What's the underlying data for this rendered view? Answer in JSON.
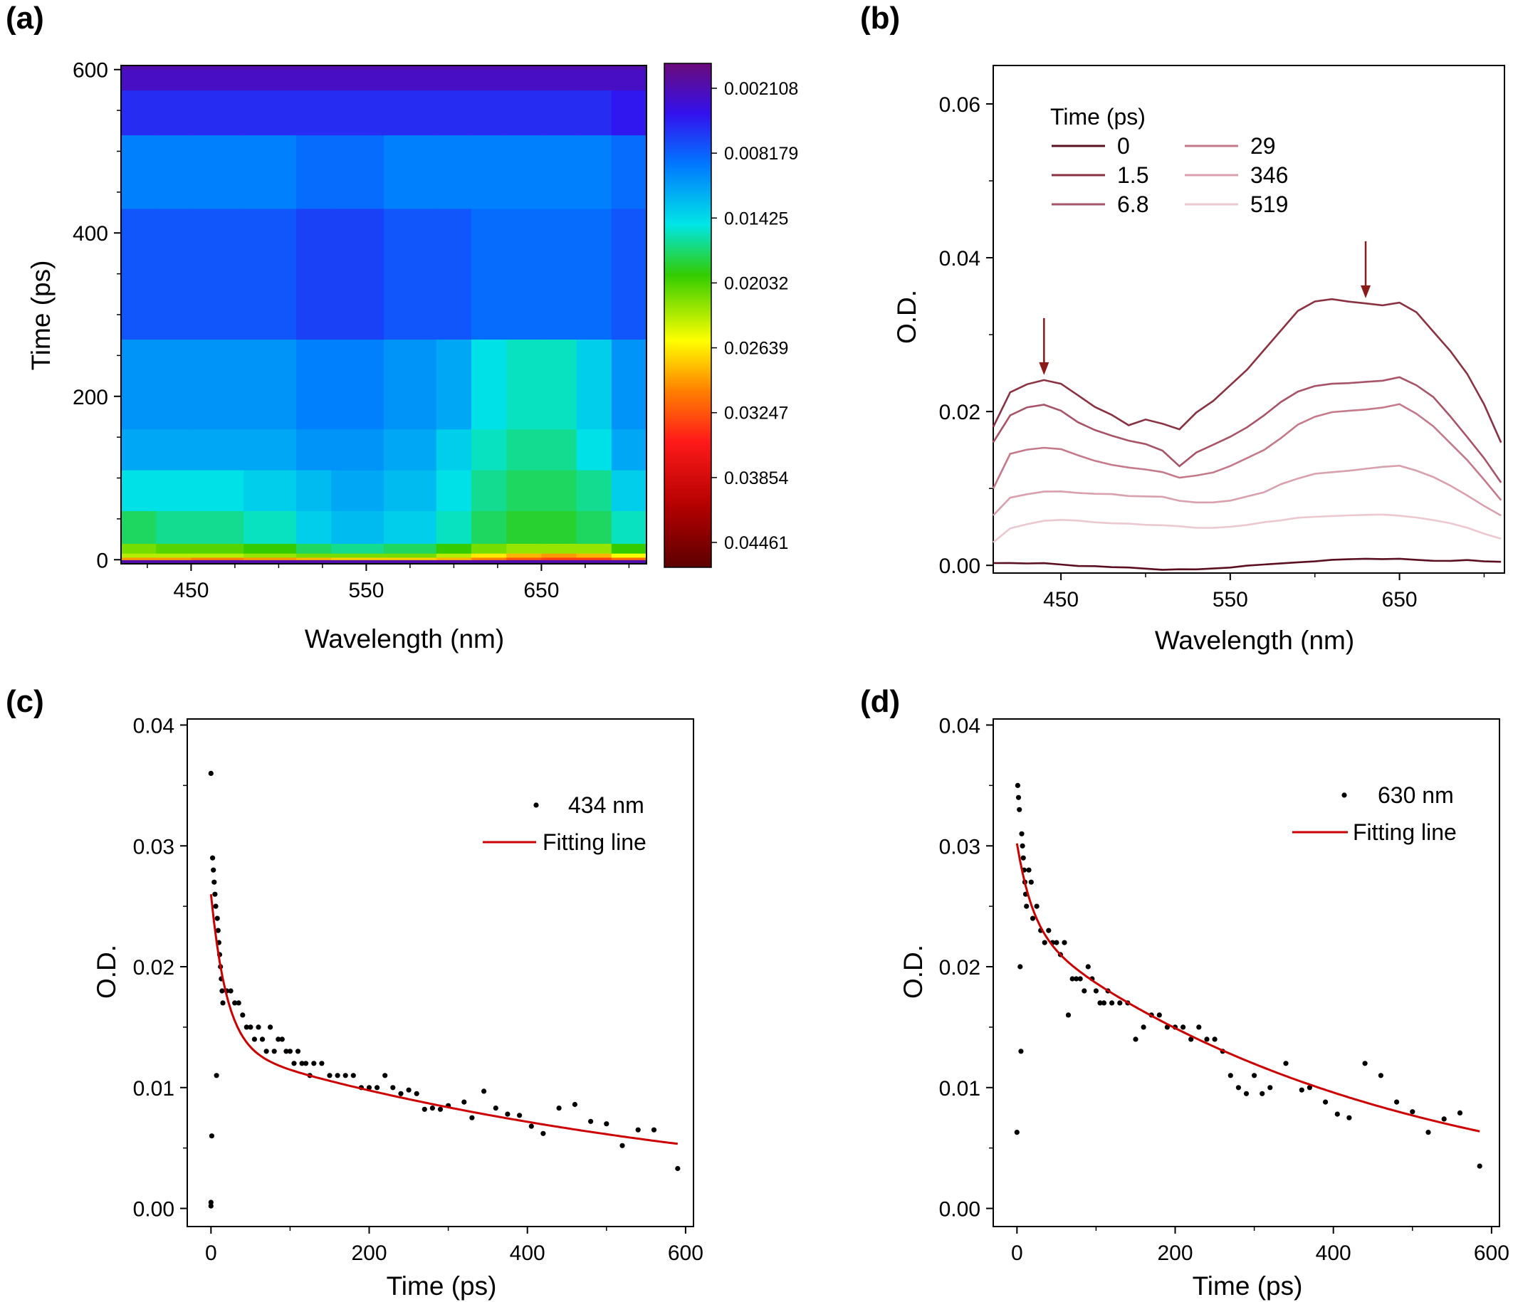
{
  "colors": {
    "axis": "#000000",
    "fit_line": "#cc0000",
    "arrow": "#8b1a1a",
    "scatter": "#000000"
  },
  "chart_data": [
    {
      "panel": "(a)",
      "type": "heatmap",
      "xlabel": "Wavelength (nm)",
      "ylabel": "Time (ps)",
      "xlim": [
        410,
        710
      ],
      "ylim": [
        -5,
        605
      ],
      "xticks": [
        450,
        550,
        650
      ],
      "yticks": [
        0,
        200,
        400,
        600
      ],
      "colorbar": {
        "ticks": [
          "0.002108",
          "0.008179",
          "0.01425",
          "0.02032",
          "0.02639",
          "0.03247",
          "0.03854",
          "0.04461"
        ],
        "range": [
          0.0,
          0.0476
        ]
      },
      "rows": [
        {
          "t": [
            0,
            3
          ],
          "values": [
            0.03,
            0.03,
            0.031,
            0.03,
            0.029,
            0.028,
            0.028,
            0.029,
            0.031,
            0.033,
            0.034,
            0.034,
            0.032
          ]
        },
        {
          "t": [
            3,
            8
          ],
          "values": [
            0.024,
            0.024,
            0.024,
            0.023,
            0.022,
            0.022,
            0.022,
            0.024,
            0.027,
            0.029,
            0.03,
            0.029,
            0.026
          ]
        },
        {
          "t": [
            8,
            20
          ],
          "values": [
            0.022,
            0.021,
            0.021,
            0.02,
            0.018,
            0.017,
            0.018,
            0.02,
            0.022,
            0.023,
            0.023,
            0.023,
            0.02
          ]
        },
        {
          "t": [
            20,
            60
          ],
          "values": [
            0.018,
            0.017,
            0.017,
            0.016,
            0.014,
            0.013,
            0.014,
            0.016,
            0.018,
            0.019,
            0.019,
            0.018,
            0.016
          ]
        },
        {
          "t": [
            60,
            110
          ],
          "values": [
            0.015,
            0.015,
            0.015,
            0.014,
            0.013,
            0.012,
            0.013,
            0.015,
            0.017,
            0.018,
            0.018,
            0.017,
            0.014
          ]
        },
        {
          "t": [
            110,
            160
          ],
          "values": [
            0.012,
            0.012,
            0.012,
            0.012,
            0.011,
            0.011,
            0.012,
            0.014,
            0.016,
            0.017,
            0.017,
            0.015,
            0.012
          ]
        },
        {
          "t": [
            160,
            270
          ],
          "values": [
            0.011,
            0.011,
            0.011,
            0.011,
            0.01,
            0.01,
            0.011,
            0.012,
            0.015,
            0.016,
            0.016,
            0.014,
            0.011
          ]
        },
        {
          "t": [
            270,
            430
          ],
          "values": [
            0.008,
            0.008,
            0.008,
            0.008,
            0.007,
            0.007,
            0.008,
            0.008,
            0.009,
            0.009,
            0.009,
            0.009,
            0.008
          ]
        },
        {
          "t": [
            430,
            520
          ],
          "values": [
            0.01,
            0.01,
            0.01,
            0.01,
            0.009,
            0.009,
            0.01,
            0.01,
            0.01,
            0.01,
            0.01,
            0.01,
            0.009
          ]
        },
        {
          "t": [
            520,
            575
          ],
          "values": [
            0.006,
            0.006,
            0.006,
            0.006,
            0.006,
            0.006,
            0.006,
            0.006,
            0.006,
            0.006,
            0.006,
            0.006,
            0.005
          ]
        },
        {
          "t": [
            575,
            600
          ],
          "values": [
            0.003,
            0.003,
            0.003,
            0.003,
            0.003,
            0.003,
            0.003,
            0.003,
            0.003,
            0.003,
            0.003,
            0.003,
            0.003
          ]
        }
      ],
      "columns_x": [
        410,
        430,
        450,
        480,
        510,
        530,
        560,
        590,
        610,
        630,
        650,
        670,
        690,
        710
      ]
    },
    {
      "panel": "(b)",
      "type": "line",
      "xlabel": "Wavelength (nm)",
      "ylabel": "O.D.",
      "xlim": [
        410,
        712
      ],
      "ylim": [
        -0.001,
        0.065
      ],
      "xticks": [
        450,
        550,
        650
      ],
      "yticks": [
        0.0,
        0.02,
        0.04,
        0.06
      ],
      "ytick_labels": [
        "0.00",
        "0.02",
        "0.04",
        "0.06"
      ],
      "legend_title": "Time (ps)",
      "x": [
        410,
        420,
        430,
        440,
        450,
        460,
        470,
        480,
        490,
        500,
        510,
        520,
        530,
        540,
        550,
        560,
        570,
        580,
        590,
        600,
        610,
        620,
        630,
        640,
        650,
        660,
        670,
        680,
        690,
        700,
        710
      ],
      "series": [
        {
          "name": "0",
          "color": "#5a1020",
          "values": [
            0.0003,
            0.0003,
            0.0002,
            0.0002,
            0.0,
            -0.0002,
            -0.0002,
            -0.0003,
            -0.0003,
            -0.0004,
            -0.0005,
            -0.0004,
            -0.0004,
            -0.0003,
            -0.0002,
            0.0,
            0.0001,
            0.0002,
            0.0003,
            0.0004,
            0.0006,
            0.0007,
            0.0008,
            0.0008,
            0.0009,
            0.0008,
            0.0007,
            0.0007,
            0.0008,
            0.0006,
            0.0005
          ]
        },
        {
          "name": "1.5",
          "color": "#8a3242",
          "values": [
            0.018,
            0.0225,
            0.0235,
            0.024,
            0.0235,
            0.022,
            0.0205,
            0.0195,
            0.0182,
            0.019,
            0.0185,
            0.0178,
            0.02,
            0.0215,
            0.0235,
            0.0255,
            0.028,
            0.0305,
            0.033,
            0.0342,
            0.0345,
            0.0342,
            0.034,
            0.0338,
            0.0342,
            0.033,
            0.0305,
            0.028,
            0.025,
            0.021,
            0.016
          ]
        },
        {
          "name": "6.8",
          "color": "#a85468",
          "values": [
            0.016,
            0.0195,
            0.0205,
            0.0208,
            0.02,
            0.0185,
            0.0175,
            0.0168,
            0.0162,
            0.0158,
            0.015,
            0.013,
            0.0148,
            0.0158,
            0.0168,
            0.018,
            0.0195,
            0.0212,
            0.0225,
            0.0232,
            0.0235,
            0.0236,
            0.0238,
            0.024,
            0.0245,
            0.0235,
            0.022,
            0.0195,
            0.0168,
            0.014,
            0.0108
          ]
        },
        {
          "name": "29",
          "color": "#c47a8a",
          "values": [
            0.01,
            0.0145,
            0.015,
            0.0152,
            0.015,
            0.0142,
            0.0135,
            0.013,
            0.0127,
            0.0125,
            0.0122,
            0.0115,
            0.0118,
            0.0122,
            0.013,
            0.014,
            0.015,
            0.0165,
            0.0182,
            0.0192,
            0.0198,
            0.02,
            0.0202,
            0.0205,
            0.021,
            0.0198,
            0.0182,
            0.016,
            0.0138,
            0.0112,
            0.0085
          ]
        },
        {
          "name": "346",
          "color": "#d9a0ae",
          "values": [
            0.0065,
            0.0088,
            0.0092,
            0.0095,
            0.0095,
            0.0093,
            0.0092,
            0.0092,
            0.009,
            0.009,
            0.009,
            0.0085,
            0.0083,
            0.0083,
            0.0085,
            0.009,
            0.0095,
            0.0105,
            0.0112,
            0.0118,
            0.012,
            0.0122,
            0.0125,
            0.0128,
            0.013,
            0.0124,
            0.0116,
            0.0105,
            0.0092,
            0.0078,
            0.0065
          ]
        },
        {
          "name": "519",
          "color": "#ecc8d0",
          "values": [
            0.003,
            0.0048,
            0.0053,
            0.0057,
            0.0058,
            0.0057,
            0.0055,
            0.0054,
            0.0054,
            0.0053,
            0.0053,
            0.0052,
            0.005,
            0.005,
            0.0051,
            0.0053,
            0.0056,
            0.0058,
            0.0061,
            0.0062,
            0.0063,
            0.0064,
            0.0065,
            0.0066,
            0.0065,
            0.0063,
            0.006,
            0.0056,
            0.005,
            0.0042,
            0.0035
          ]
        }
      ],
      "arrows_at_x": [
        440,
        630
      ]
    },
    {
      "panel": "(c)",
      "type": "scatter",
      "xlabel": "Time (ps)",
      "ylabel": "O.D.",
      "xlim": [
        -30,
        610
      ],
      "ylim": [
        -0.0015,
        0.0405
      ],
      "xticks": [
        0,
        200,
        400,
        600
      ],
      "yticks": [
        0.0,
        0.01,
        0.02,
        0.03,
        0.04
      ],
      "ytick_labels": [
        "0.00",
        "0.01",
        "0.02",
        "0.03",
        "0.04"
      ],
      "legend": {
        "scatter": "434 nm",
        "fit": "Fitting line"
      },
      "points": [
        [
          0,
          0.036
        ],
        [
          0,
          0.0002
        ],
        [
          0,
          0.0005
        ],
        [
          1,
          0.006
        ],
        [
          2,
          0.029
        ],
        [
          3,
          0.028
        ],
        [
          4,
          0.027
        ],
        [
          5,
          0.026
        ],
        [
          6,
          0.025
        ],
        [
          7,
          0.011
        ],
        [
          8,
          0.024
        ],
        [
          9,
          0.023
        ],
        [
          10,
          0.022
        ],
        [
          11,
          0.021
        ],
        [
          12,
          0.02
        ],
        [
          13,
          0.019
        ],
        [
          14,
          0.018
        ],
        [
          15,
          0.017
        ],
        [
          20,
          0.018
        ],
        [
          25,
          0.018
        ],
        [
          30,
          0.017
        ],
        [
          35,
          0.017
        ],
        [
          40,
          0.016
        ],
        [
          45,
          0.015
        ],
        [
          50,
          0.015
        ],
        [
          55,
          0.014
        ],
        [
          60,
          0.015
        ],
        [
          65,
          0.014
        ],
        [
          70,
          0.013
        ],
        [
          75,
          0.015
        ],
        [
          80,
          0.013
        ],
        [
          85,
          0.014
        ],
        [
          90,
          0.014
        ],
        [
          95,
          0.013
        ],
        [
          100,
          0.013
        ],
        [
          105,
          0.012
        ],
        [
          110,
          0.013
        ],
        [
          115,
          0.012
        ],
        [
          120,
          0.012
        ],
        [
          125,
          0.011
        ],
        [
          130,
          0.012
        ],
        [
          140,
          0.012
        ],
        [
          150,
          0.011
        ],
        [
          160,
          0.011
        ],
        [
          170,
          0.011
        ],
        [
          180,
          0.011
        ],
        [
          190,
          0.01
        ],
        [
          200,
          0.01
        ],
        [
          210,
          0.01
        ],
        [
          220,
          0.011
        ],
        [
          230,
          0.01
        ],
        [
          240,
          0.0095
        ],
        [
          250,
          0.0098
        ],
        [
          260,
          0.0095
        ],
        [
          270,
          0.0082
        ],
        [
          280,
          0.0083
        ],
        [
          290,
          0.0082
        ],
        [
          300,
          0.0085
        ],
        [
          320,
          0.0088
        ],
        [
          330,
          0.0075
        ],
        [
          345,
          0.0097
        ],
        [
          360,
          0.0083
        ],
        [
          375,
          0.0078
        ],
        [
          390,
          0.0077
        ],
        [
          405,
          0.0068
        ],
        [
          420,
          0.0062
        ],
        [
          440,
          0.0083
        ],
        [
          460,
          0.0086
        ],
        [
          480,
          0.0072
        ],
        [
          500,
          0.007
        ],
        [
          520,
          0.0052
        ],
        [
          540,
          0.0065
        ],
        [
          560,
          0.0065
        ],
        [
          590,
          0.0033
        ]
      ],
      "fit": {
        "model": "biexponential",
        "a1": 0.0127,
        "tau1": 20,
        "a2": 0.0133,
        "tau2": 647,
        "x_range": [
          0,
          590
        ]
      }
    },
    {
      "panel": "(d)",
      "type": "scatter",
      "xlabel": "Time (ps)",
      "ylabel": "O.D.",
      "xlim": [
        -30,
        610
      ],
      "ylim": [
        -0.0015,
        0.0405
      ],
      "xticks": [
        0,
        200,
        400,
        600
      ],
      "yticks": [
        0.0,
        0.01,
        0.02,
        0.03,
        0.04
      ],
      "ytick_labels": [
        "0.00",
        "0.01",
        "0.02",
        "0.03",
        "0.04"
      ],
      "legend": {
        "scatter": "630 nm",
        "fit": "Fitting line"
      },
      "points": [
        [
          0,
          0.0063
        ],
        [
          1,
          0.035
        ],
        [
          2,
          0.034
        ],
        [
          3,
          0.033
        ],
        [
          4,
          0.02
        ],
        [
          5,
          0.013
        ],
        [
          6,
          0.031
        ],
        [
          7,
          0.03
        ],
        [
          8,
          0.029
        ],
        [
          9,
          0.028
        ],
        [
          10,
          0.027
        ],
        [
          11,
          0.026
        ],
        [
          12,
          0.025
        ],
        [
          15,
          0.028
        ],
        [
          18,
          0.027
        ],
        [
          20,
          0.024
        ],
        [
          25,
          0.025
        ],
        [
          30,
          0.023
        ],
        [
          35,
          0.022
        ],
        [
          40,
          0.023
        ],
        [
          45,
          0.022
        ],
        [
          50,
          0.022
        ],
        [
          55,
          0.021
        ],
        [
          60,
          0.022
        ],
        [
          65,
          0.016
        ],
        [
          70,
          0.019
        ],
        [
          75,
          0.019
        ],
        [
          80,
          0.019
        ],
        [
          85,
          0.018
        ],
        [
          90,
          0.02
        ],
        [
          95,
          0.019
        ],
        [
          100,
          0.018
        ],
        [
          105,
          0.017
        ],
        [
          110,
          0.017
        ],
        [
          115,
          0.018
        ],
        [
          120,
          0.017
        ],
        [
          130,
          0.017
        ],
        [
          140,
          0.017
        ],
        [
          150,
          0.014
        ],
        [
          160,
          0.015
        ],
        [
          170,
          0.016
        ],
        [
          180,
          0.016
        ],
        [
          190,
          0.015
        ],
        [
          200,
          0.015
        ],
        [
          210,
          0.015
        ],
        [
          220,
          0.014
        ],
        [
          230,
          0.015
        ],
        [
          240,
          0.014
        ],
        [
          250,
          0.014
        ],
        [
          260,
          0.013
        ],
        [
          270,
          0.011
        ],
        [
          280,
          0.01
        ],
        [
          290,
          0.0095
        ],
        [
          300,
          0.011
        ],
        [
          310,
          0.0095
        ],
        [
          320,
          0.01
        ],
        [
          340,
          0.012
        ],
        [
          360,
          0.0098
        ],
        [
          370,
          0.01
        ],
        [
          390,
          0.0088
        ],
        [
          405,
          0.0078
        ],
        [
          420,
          0.0075
        ],
        [
          440,
          0.012
        ],
        [
          460,
          0.011
        ],
        [
          480,
          0.0088
        ],
        [
          500,
          0.008
        ],
        [
          520,
          0.0063
        ],
        [
          540,
          0.0074
        ],
        [
          560,
          0.0079
        ],
        [
          585,
          0.0035
        ]
      ],
      "fit": {
        "model": "biexponential",
        "a1": 0.007,
        "tau1": 20,
        "a2": 0.0232,
        "tau2": 453,
        "x_range": [
          0,
          585
        ]
      }
    }
  ]
}
